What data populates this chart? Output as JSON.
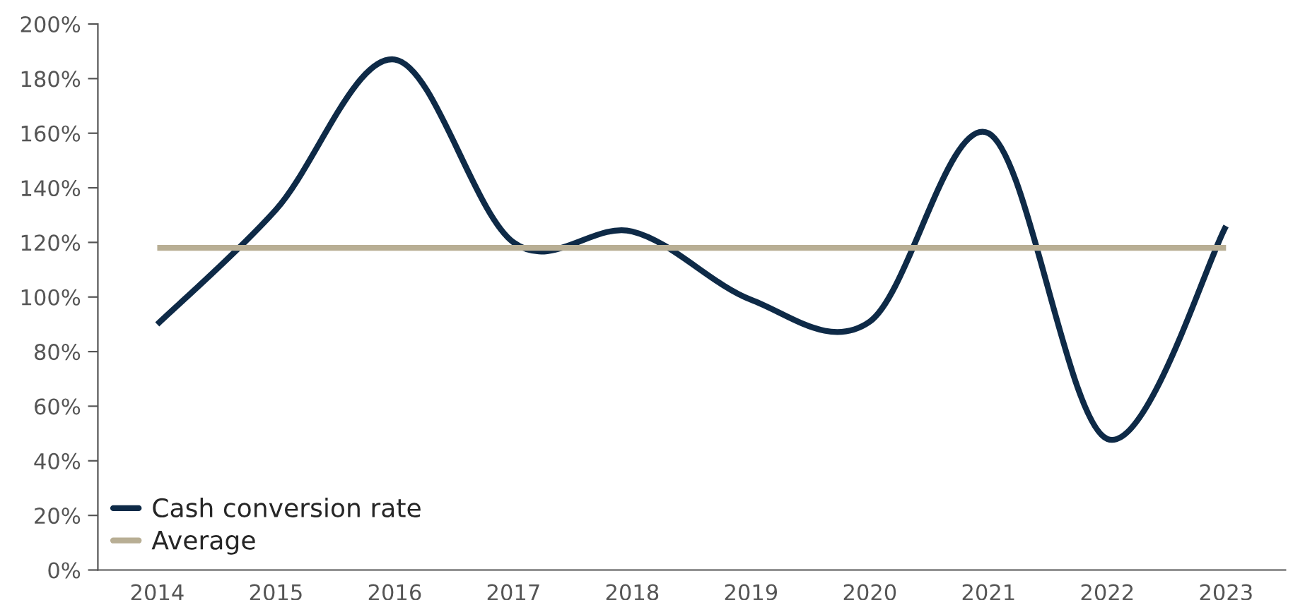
{
  "chart_data": {
    "type": "line",
    "categories": [
      "2014",
      "2015",
      "2016",
      "2017",
      "2018",
      "2019",
      "2020",
      "2021",
      "2022",
      "2023"
    ],
    "series": [
      {
        "name": "Cash conversion rate",
        "color": "#0e2a47",
        "values": [
          90,
          132,
          187,
          120,
          124,
          99,
          91,
          160,
          48,
          126
        ]
      },
      {
        "name": "Average",
        "color": "#b8ae94",
        "values": [
          118,
          118,
          118,
          118,
          118,
          118,
          118,
          118,
          118,
          118
        ]
      }
    ],
    "ylim": [
      0,
      200
    ],
    "yticks": [
      {
        "value": 0,
        "label": "0%"
      },
      {
        "value": 20,
        "label": "20%"
      },
      {
        "value": 40,
        "label": "40%"
      },
      {
        "value": 60,
        "label": "60%"
      },
      {
        "value": 80,
        "label": "80%"
      },
      {
        "value": 100,
        "label": "100%"
      },
      {
        "value": 120,
        "label": "120%"
      },
      {
        "value": 140,
        "label": "140%"
      },
      {
        "value": 160,
        "label": "160%"
      },
      {
        "value": 180,
        "label": "180%"
      },
      {
        "value": 200,
        "label": "200%"
      }
    ],
    "grid": false,
    "legend": "bottom left",
    "marker": "none",
    "line_style": "solid"
  }
}
